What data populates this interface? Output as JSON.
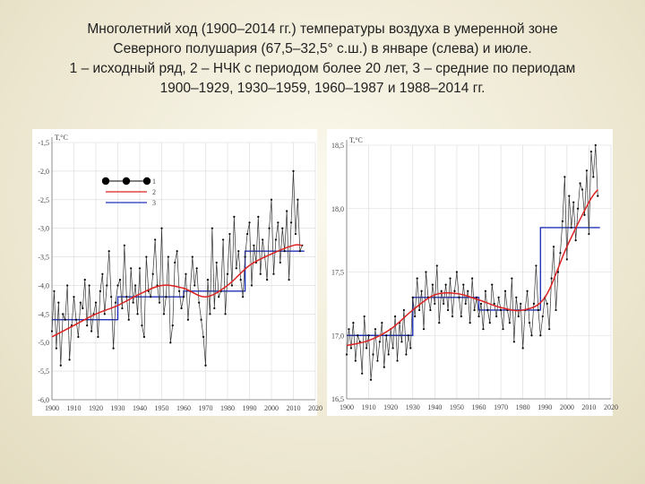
{
  "caption": {
    "line1": "Многолетний ход (1900–2014 гг.) температуры воздуха в умеренной зоне",
    "line2": "Северного полушария (67,5–32,5° с.ш.) в январе (слева) и июле.",
    "line3": "1 – исходный ряд, 2 – НЧК с периодом более 20 лет, 3 – средние по периодам",
    "line4": "1900–1929, 1930–1959, 1960–1987 и 1988–2014 гг."
  },
  "chart_data": [
    {
      "type": "line",
      "title": "January",
      "unit_label": "T,°C",
      "xlim": [
        1900,
        2020
      ],
      "ylim": [
        -6.0,
        -1.5
      ],
      "x_ticks": [
        1900,
        1910,
        1920,
        1930,
        1940,
        1950,
        1960,
        1970,
        1980,
        1990,
        2000,
        2010,
        2020
      ],
      "y_ticks": [
        -1.5,
        -2.0,
        -2.5,
        -3.0,
        -3.5,
        -4.0,
        -4.5,
        -5.0,
        -5.5,
        -6.0
      ],
      "y_tick_labels": [
        "-1,5",
        "-2,0",
        "-2,5",
        "-3,0",
        "-3,5",
        "-4,0",
        "-4,5",
        "-5,0",
        "-5,5",
        "-6,0"
      ],
      "legend": [
        {
          "key": "1",
          "color": "#000000"
        },
        {
          "key": "2",
          "color": "#dd2222"
        },
        {
          "key": "3",
          "color": "#2233bb"
        }
      ],
      "series": [
        {
          "name": "1",
          "color": "#000000",
          "x_start": 1900,
          "values": [
            -4.8,
            -4.1,
            -5.1,
            -4.3,
            -5.4,
            -4.5,
            -4.6,
            -4.0,
            -5.3,
            -4.7,
            -4.2,
            -4.6,
            -4.9,
            -4.3,
            -4.4,
            -3.9,
            -4.7,
            -4.0,
            -4.8,
            -4.5,
            -4.3,
            -4.9,
            -4.1,
            -3.8,
            -4.5,
            -4.0,
            -3.4,
            -4.2,
            -5.1,
            -4.3,
            -4.0,
            -3.9,
            -4.4,
            -3.3,
            -4.2,
            -4.6,
            -3.7,
            -4.3,
            -4.0,
            -4.5,
            -3.7,
            -4.7,
            -4.9,
            -3.5,
            -4.1,
            -4.2,
            -3.8,
            -3.2,
            -4.0,
            -4.3,
            -3.0,
            -4.5,
            -4.2,
            -3.5,
            -5.0,
            -4.7,
            -3.6,
            -3.4,
            -4.1,
            -4.4,
            -4.2,
            -3.8,
            -4.6,
            -4.1,
            -3.5,
            -4.0,
            -3.7,
            -4.3,
            -4.6,
            -4.9,
            -5.4,
            -3.9,
            -4.5,
            -3.0,
            -4.4,
            -3.6,
            -4.2,
            -4.1,
            -3.2,
            -4.5,
            -3.8,
            -3.1,
            -4.0,
            -2.8,
            -3.7,
            -3.4,
            -3.9,
            -4.2,
            -3.5,
            -3.1,
            -2.9,
            -4.0,
            -3.3,
            -3.6,
            -2.8,
            -3.8,
            -3.2,
            -3.5,
            -3.9,
            -3.0,
            -2.5,
            -3.8,
            -3.2,
            -2.9,
            -3.6,
            -3.0,
            -3.4,
            -2.7,
            -3.9,
            -2.9,
            -2.0,
            -3.1,
            -2.5,
            -3.4,
            -3.3
          ]
        },
        {
          "name": "2",
          "color": "#dd2222",
          "x": [
            1900,
            1910,
            1920,
            1930,
            1940,
            1950,
            1960,
            1970,
            1980,
            1990,
            2000,
            2010,
            2014
          ],
          "values": [
            -4.9,
            -4.7,
            -4.5,
            -4.35,
            -4.15,
            -4.0,
            -4.05,
            -4.2,
            -4.0,
            -3.65,
            -3.45,
            -3.3,
            -3.3
          ]
        },
        {
          "name": "3",
          "color": "#2233bb",
          "segments": [
            {
              "from": 1900,
              "to": 1929,
              "value": -4.6
            },
            {
              "from": 1930,
              "to": 1959,
              "value": -4.2
            },
            {
              "from": 1960,
              "to": 1987,
              "value": -4.1
            },
            {
              "from": 1988,
              "to": 2014,
              "value": -3.4
            }
          ]
        }
      ]
    },
    {
      "type": "line",
      "title": "July",
      "unit_label": "T,°C",
      "xlim": [
        1900,
        2020
      ],
      "ylim": [
        16.5,
        18.5
      ],
      "x_ticks": [
        1900,
        1910,
        1920,
        1930,
        1940,
        1950,
        1960,
        1970,
        1980,
        1990,
        2000,
        2010,
        2020
      ],
      "y_ticks": [
        18.5,
        18.0,
        17.5,
        17.0,
        16.5
      ],
      "y_tick_labels": [
        "18,5",
        "18,0",
        "17,5",
        "17,0",
        "16,5"
      ],
      "series": [
        {
          "name": "1",
          "color": "#000000",
          "x_start": 1900,
          "values": [
            16.85,
            17.05,
            16.9,
            17.1,
            16.8,
            17.0,
            16.95,
            16.7,
            17.15,
            16.9,
            17.0,
            16.65,
            16.85,
            17.05,
            16.8,
            16.95,
            17.1,
            16.75,
            17.0,
            16.85,
            17.05,
            16.9,
            17.15,
            16.8,
            17.1,
            16.95,
            17.2,
            16.85,
            17.0,
            16.9,
            17.3,
            17.15,
            17.45,
            17.2,
            17.35,
            17.05,
            17.5,
            17.3,
            17.2,
            17.4,
            17.25,
            17.55,
            17.1,
            17.35,
            17.25,
            17.4,
            17.2,
            17.45,
            17.15,
            17.35,
            17.5,
            17.3,
            17.15,
            17.4,
            17.25,
            17.35,
            17.1,
            17.45,
            17.2,
            17.3,
            17.15,
            17.25,
            17.05,
            17.35,
            17.2,
            17.1,
            17.4,
            17.25,
            17.15,
            17.3,
            17.2,
            17.05,
            17.35,
            17.2,
            17.1,
            17.45,
            16.95,
            17.3,
            17.15,
            17.25,
            16.9,
            17.2,
            17.35,
            17.1,
            17.0,
            17.25,
            17.55,
            17.2,
            17.0,
            17.15,
            17.3,
            17.25,
            17.05,
            17.45,
            17.7,
            17.2,
            17.5,
            17.65,
            17.9,
            18.25,
            17.6,
            18.1,
            17.85,
            18.05,
            17.75,
            18.0,
            18.2,
            18.15,
            17.95,
            18.3,
            17.8,
            18.45,
            18.25,
            18.5,
            18.1
          ]
        },
        {
          "name": "2",
          "color": "#dd2222",
          "x": [
            1900,
            1910,
            1920,
            1930,
            1940,
            1950,
            1960,
            1970,
            1980,
            1990,
            2000,
            2010,
            2014
          ],
          "values": [
            16.92,
            16.96,
            17.05,
            17.2,
            17.32,
            17.33,
            17.28,
            17.22,
            17.2,
            17.3,
            17.7,
            18.05,
            18.15
          ]
        },
        {
          "name": "3",
          "color": "#2233bb",
          "segments": [
            {
              "from": 1900,
              "to": 1929,
              "value": 17.0
            },
            {
              "from": 1930,
              "to": 1959,
              "value": 17.3
            },
            {
              "from": 1960,
              "to": 1987,
              "value": 17.2
            },
            {
              "from": 1988,
              "to": 2014,
              "value": 17.85
            }
          ]
        }
      ]
    }
  ]
}
